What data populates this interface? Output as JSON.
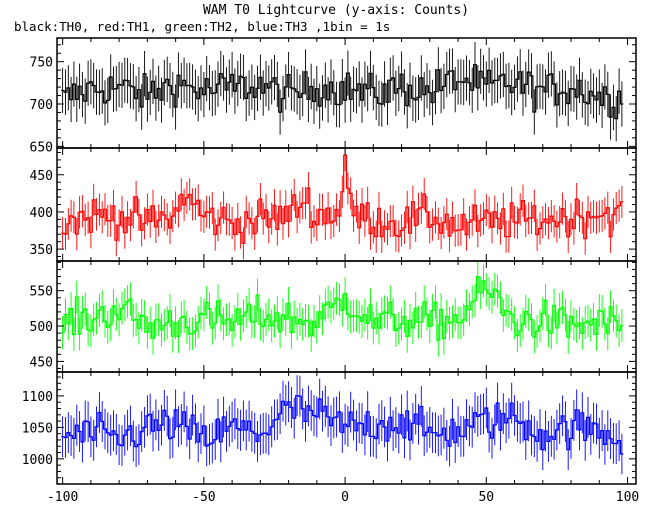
{
  "chart_data": {
    "type": "line",
    "title": "WAM T0 Lightcurve (y-axis: Counts)",
    "subtitle": "black:TH0, red:TH1, green:TH2, blue:TH3 ,1bin = 1s",
    "xlabel": "",
    "ylabel": "",
    "x_ticks": [
      "-100",
      "-50",
      "0",
      "50",
      "100"
    ],
    "xlim": [
      -102,
      103
    ],
    "grid": false,
    "series": [
      {
        "name": "TH0",
        "color": "#000000",
        "ylim": [
          648,
          778
        ],
        "y_ticks": [
          "650",
          "700",
          "750"
        ],
        "x": [
          -100,
          -90,
          -80,
          -70,
          -60,
          -50,
          -40,
          -30,
          -20,
          -10,
          0,
          10,
          20,
          30,
          40,
          50,
          60,
          70,
          80,
          90,
          98
        ],
        "values": [
          705,
          718,
          720,
          710,
          725,
          715,
          720,
          722,
          710,
          720,
          718,
          712,
          720,
          715,
          730,
          720,
          725,
          715,
          720,
          710,
          705
        ]
      },
      {
        "name": "TH1",
        "color": "#ff0000",
        "ylim": [
          334,
          486
        ],
        "y_ticks": [
          "350",
          "400",
          "450"
        ],
        "x": [
          -100,
          -90,
          -80,
          -70,
          -60,
          -57,
          -50,
          -40,
          -30,
          -20,
          -14,
          -10,
          -2,
          0,
          2,
          10,
          20,
          30,
          40,
          50,
          60,
          70,
          80,
          90,
          98
        ],
        "values": [
          385,
          395,
          395,
          385,
          395,
          425,
          395,
          385,
          390,
          395,
          418,
          395,
          400,
          470,
          400,
          390,
          385,
          395,
          380,
          385,
          388,
          390,
          392,
          400,
          395
        ]
      },
      {
        "name": "TH2",
        "color": "#00ff00",
        "ylim": [
          435,
          592
        ],
        "y_ticks": [
          "450",
          "500",
          "550"
        ],
        "x": [
          -100,
          -90,
          -80,
          -70,
          -60,
          -50,
          -40,
          -30,
          -20,
          -10,
          0,
          10,
          20,
          30,
          40,
          50,
          60,
          70,
          80,
          90,
          98
        ],
        "values": [
          505,
          510,
          525,
          500,
          505,
          510,
          505,
          515,
          510,
          505,
          540,
          505,
          510,
          505,
          510,
          555,
          505,
          510,
          500,
          505,
          500
        ]
      },
      {
        "name": "TH3",
        "color": "#0000ff",
        "ylim": [
          960,
          1138
        ],
        "y_ticks": [
          "1000",
          "1050",
          "1100"
        ],
        "x": [
          -100,
          -90,
          -80,
          -70,
          -60,
          -50,
          -40,
          -30,
          -20,
          -10,
          0,
          10,
          20,
          30,
          40,
          50,
          60,
          70,
          80,
          90,
          98
        ],
        "values": [
          1035,
          1040,
          1030,
          1050,
          1055,
          1030,
          1050,
          1040,
          1080,
          1070,
          1050,
          1055,
          1060,
          1040,
          1045,
          1060,
          1065,
          1040,
          1050,
          1045,
          1030
        ]
      }
    ]
  }
}
